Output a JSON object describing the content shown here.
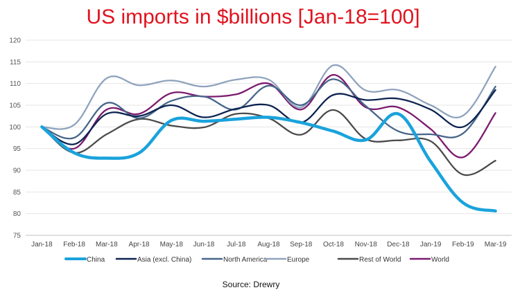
{
  "chart_data": {
    "type": "line",
    "title": "US imports in $billions [Jan-18=100]",
    "source": "Source: Drewry",
    "x": [
      "Jan-18",
      "Feb-18",
      "Mar-18",
      "Apr-18",
      "May-18",
      "Jun-18",
      "Jul-18",
      "Aug-18",
      "Sep-18",
      "Oct-18",
      "Nov-18",
      "Dec-18",
      "Jan-19",
      "Feb-19",
      "Mar-19"
    ],
    "ylim": [
      75,
      120
    ],
    "yticks": [
      "75",
      "80",
      "85",
      "90",
      "95",
      "100",
      "105",
      "110",
      "115",
      "120"
    ],
    "grid": true,
    "legend_position": "bottom",
    "series": [
      {
        "name": "China",
        "color": "#1aa3dc",
        "values": [
          100,
          94,
          92.8,
          94,
          101.5,
          101.3,
          101.8,
          102.2,
          101,
          99,
          97,
          103,
          92,
          82.5,
          80.6
        ]
      },
      {
        "name": "Asia (excl. China)",
        "color": "#0c2351",
        "values": [
          100,
          96,
          103,
          102.5,
          105,
          102.2,
          104.2,
          105,
          101,
          107.4,
          106.2,
          106.5,
          104,
          100,
          108.5
        ]
      },
      {
        "name": "North America",
        "color": "#46658a",
        "values": [
          100,
          97.5,
          105.5,
          102,
          106,
          107,
          104,
          109.5,
          105,
          111,
          104.8,
          99,
          98.3,
          98.5,
          109.3
        ]
      },
      {
        "name": "Europe",
        "color": "#8fa3bd",
        "values": [
          100,
          100.5,
          111.2,
          109.6,
          110.7,
          109.3,
          110.9,
          110.9,
          104.5,
          114.2,
          108.4,
          108.5,
          105,
          102.6,
          113.9
        ]
      },
      {
        "name": "Rest of World",
        "color": "#4a4a4a",
        "values": [
          100,
          94,
          98.3,
          101.8,
          100.3,
          99.9,
          103,
          102,
          98.2,
          103.9,
          97.2,
          96.9,
          96.7,
          89,
          92.2
        ]
      },
      {
        "name": "World",
        "color": "#7b1a6e",
        "values": [
          100,
          95,
          104,
          103,
          107.8,
          107,
          107.5,
          110,
          104,
          112,
          104.5,
          104.5,
          99.5,
          93,
          103.2
        ]
      }
    ]
  }
}
